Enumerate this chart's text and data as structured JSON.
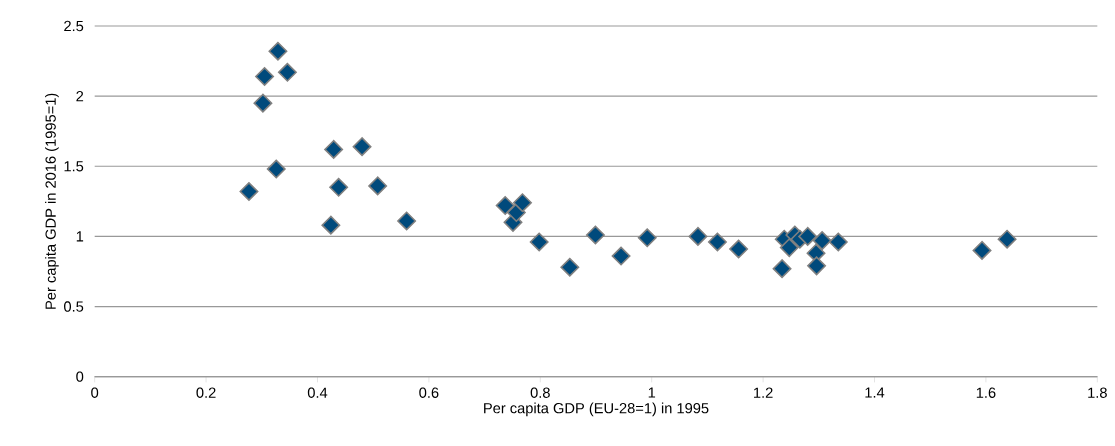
{
  "chart_data": {
    "type": "scatter",
    "xlabel": "Per capita GDP (EU-28=1) in 1995",
    "ylabel": "Per capita GDP in 2016 (1995=1)",
    "x": [
      0.277,
      0.302,
      0.305,
      0.326,
      0.329,
      0.346,
      0.424,
      0.429,
      0.438,
      0.48,
      0.508,
      0.56,
      0.737,
      0.751,
      0.757,
      0.768,
      0.798,
      0.853,
      0.899,
      0.945,
      0.992,
      1.083,
      1.118,
      1.156,
      1.234,
      1.238,
      1.247,
      1.257,
      1.266,
      1.28,
      1.295,
      1.296,
      1.306,
      1.335,
      1.593,
      1.638
    ],
    "values": [
      1.32,
      1.95,
      2.14,
      1.48,
      2.32,
      2.17,
      1.08,
      1.62,
      1.35,
      1.64,
      1.36,
      1.11,
      1.22,
      1.1,
      1.17,
      1.24,
      0.96,
      0.78,
      1.01,
      0.86,
      0.99,
      1.0,
      0.96,
      0.91,
      0.77,
      0.98,
      0.92,
      1.01,
      0.98,
      1.0,
      0.88,
      0.79,
      0.97,
      0.96,
      0.9,
      0.98
    ],
    "color": "#004a7c",
    "marker": "diamond",
    "grid": "y",
    "xlim": [
      0,
      1.8
    ],
    "ylim": [
      0,
      2.5
    ],
    "xticks": [
      0,
      0.2,
      0.4,
      0.6,
      0.8,
      1,
      1.2,
      1.4,
      1.6,
      1.8
    ],
    "yticks": [
      0,
      0.5,
      1,
      1.5,
      2,
      2.5
    ]
  }
}
